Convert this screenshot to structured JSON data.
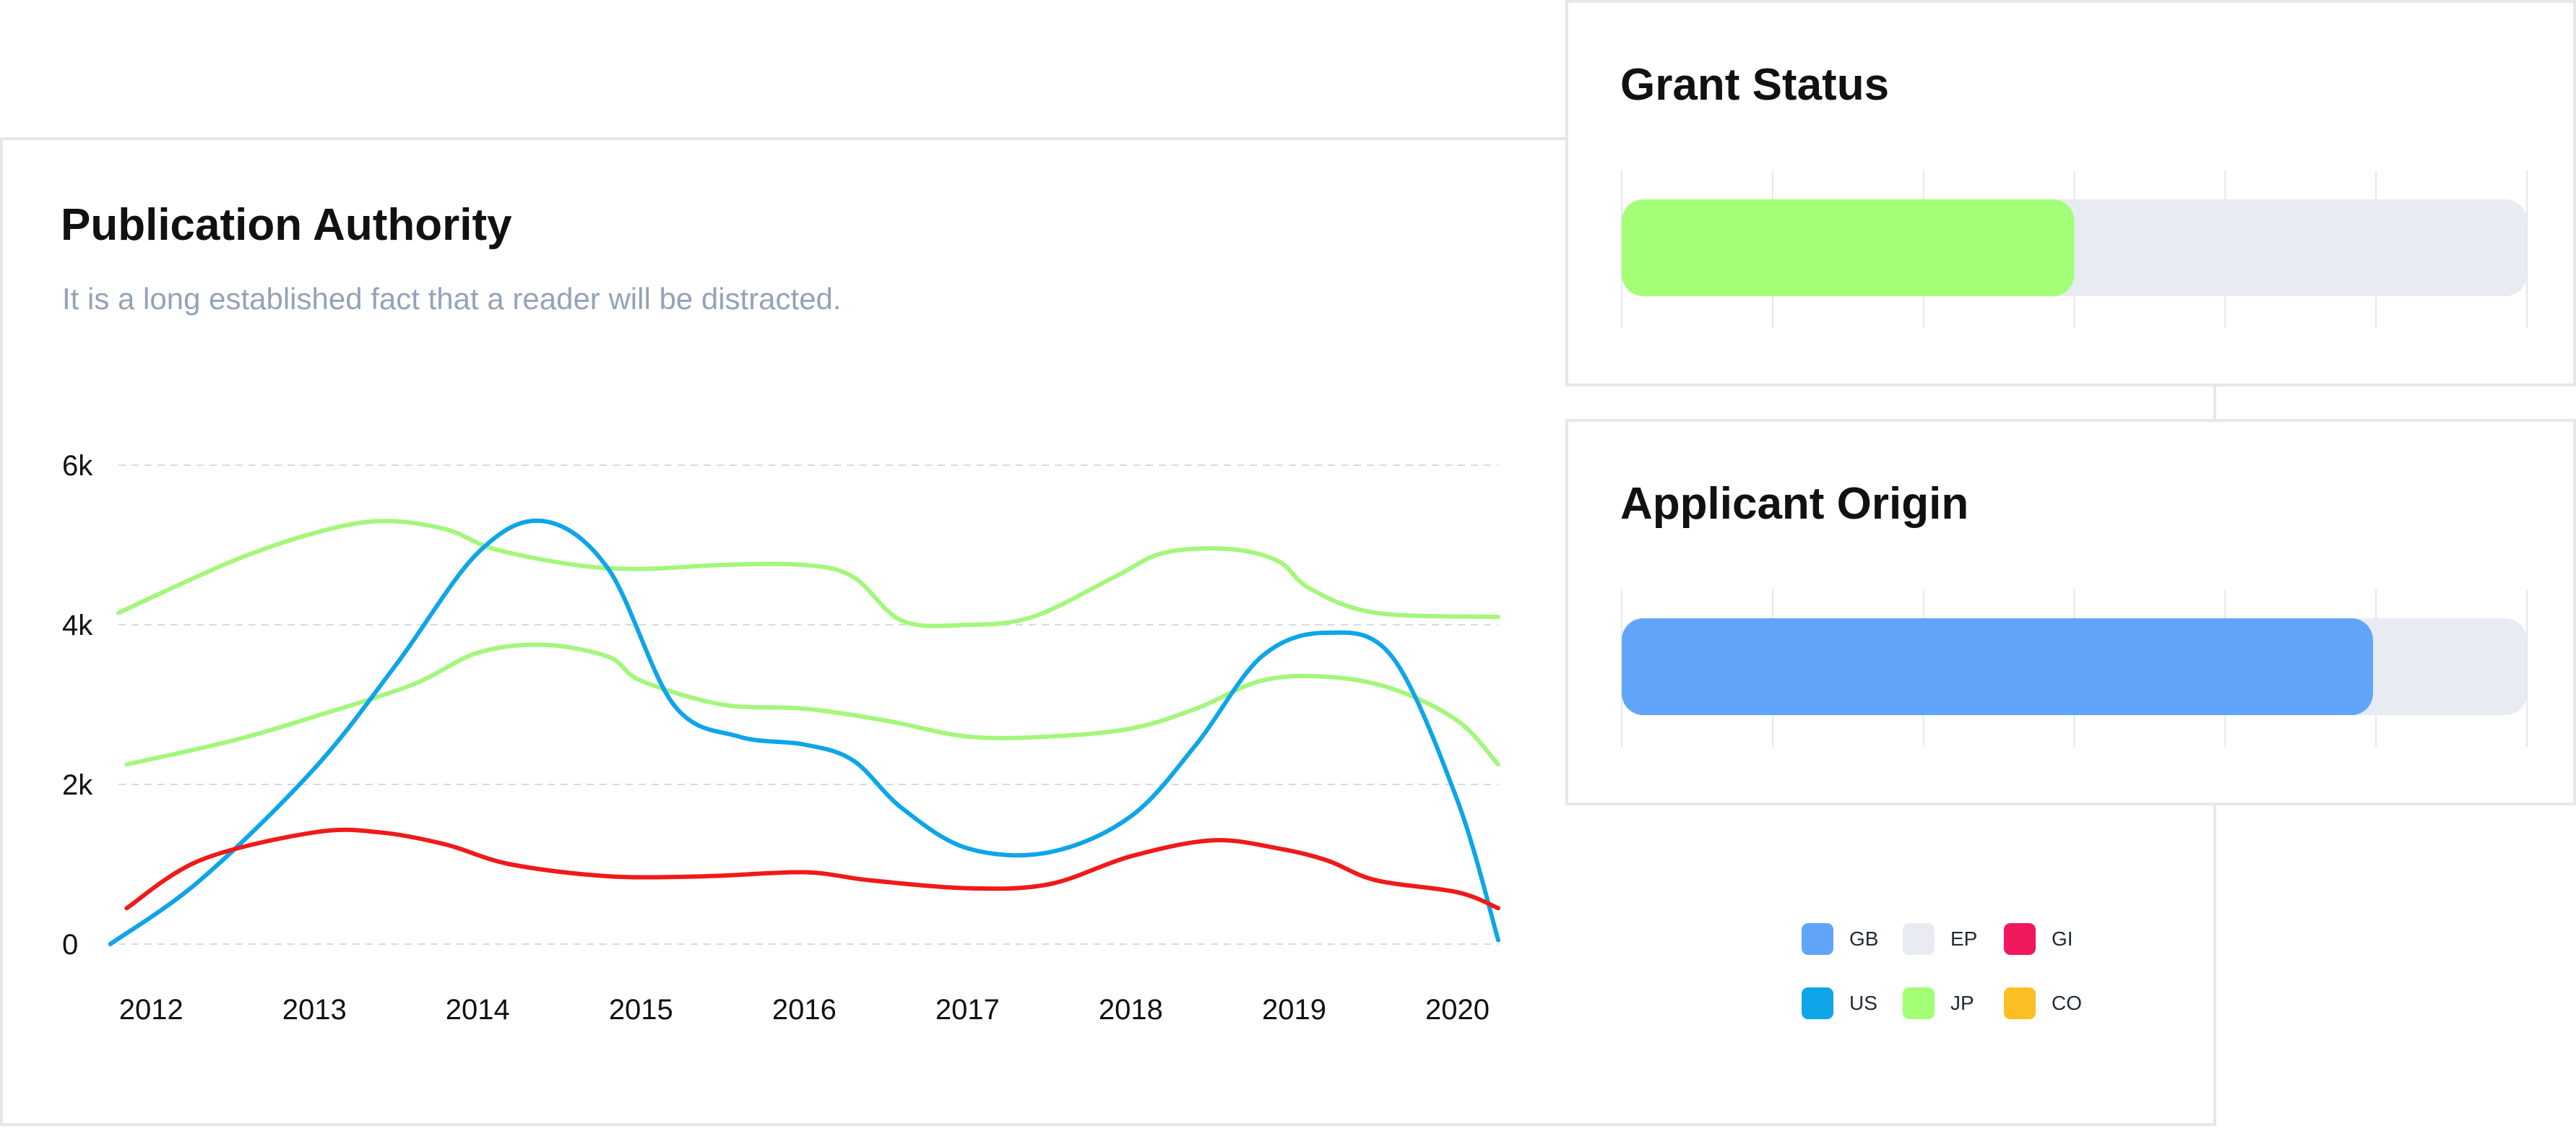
{
  "colors": {
    "GB": "#60a5fa",
    "EP": "#e8ebf1",
    "GI": "#f0185c",
    "US": "#0ea5e9",
    "JP": "#a3ff76",
    "CO": "#fbbf24",
    "red_line": "#ef1a1a",
    "green_line": "#a3f77a",
    "blue_line": "#0ea5e9",
    "grid": "#d6dbe2"
  },
  "main": {
    "title": "Publication Authority",
    "subtitle": "It is a long established fact that a reader will be distracted."
  },
  "grant": {
    "title": "Grant Status"
  },
  "origin": {
    "title": "Applicant Origin"
  },
  "legend": [
    {
      "label": "GB",
      "color": "#60a5fa"
    },
    {
      "label": "EP",
      "color": "#e8ebf1"
    },
    {
      "label": "GI",
      "color": "#f0185c"
    },
    {
      "label": "US",
      "color": "#0ea5e9"
    },
    {
      "label": "JP",
      "color": "#a3ff76"
    },
    {
      "label": "CO",
      "color": "#fbbf24"
    }
  ],
  "chart_data": [
    {
      "type": "line",
      "title": "Publication Authority",
      "subtitle": "It is a long established fact that a reader will be distracted.",
      "x_ticks": [
        "2012",
        "2013",
        "2014",
        "2015",
        "2016",
        "2017",
        "2018",
        "2019",
        "2020"
      ],
      "xlim": [
        2011.8,
        2020.25
      ],
      "y_ticks": [
        "0",
        "2k",
        "4k",
        "6k"
      ],
      "ylim": [
        0,
        6000
      ],
      "grid": true,
      "series": [
        {
          "color": "#a3f77a",
          "x": [
            2011.8,
            2012.5,
            2013.0,
            2013.4,
            2013.8,
            2014.1,
            2014.6,
            2015.0,
            2015.5,
            2016.0,
            2016.3,
            2016.6,
            2017.0,
            2017.4,
            2017.9,
            2018.2,
            2018.6,
            2018.9,
            2019.1,
            2019.5,
            2020.25
          ],
          "y": [
            4150,
            4800,
            5150,
            5300,
            5200,
            4950,
            4750,
            4700,
            4750,
            4750,
            4600,
            4050,
            4000,
            4100,
            4600,
            4900,
            4950,
            4800,
            4450,
            4150,
            4100
          ]
        },
        {
          "color": "#a3f77a",
          "x": [
            2011.85,
            2012.5,
            2013.0,
            2013.6,
            2014.0,
            2014.4,
            2014.8,
            2015.0,
            2015.5,
            2016.0,
            2016.5,
            2017.0,
            2017.5,
            2018.0,
            2018.4,
            2018.8,
            2019.2,
            2019.6,
            2020.0,
            2020.25
          ],
          "y": [
            2250,
            2550,
            2850,
            3250,
            3650,
            3750,
            3600,
            3300,
            3000,
            2950,
            2800,
            2600,
            2600,
            2700,
            2950,
            3300,
            3350,
            3200,
            2800,
            2250
          ]
        },
        {
          "color": "#0ea5e9",
          "x": [
            2011.75,
            2012.3,
            2013.0,
            2013.5,
            2014.0,
            2014.4,
            2014.8,
            2015.2,
            2015.6,
            2016.0,
            2016.3,
            2016.6,
            2017.0,
            2017.5,
            2018.0,
            2018.4,
            2018.8,
            2019.2,
            2019.6,
            2020.0,
            2020.25
          ],
          "y": [
            0,
            800,
            2200,
            3500,
            4900,
            5300,
            4700,
            3000,
            2600,
            2500,
            2300,
            1700,
            1200,
            1150,
            1600,
            2500,
            3600,
            3900,
            3600,
            1800,
            50
          ]
        },
        {
          "color": "#ef1a1a",
          "x": [
            2011.85,
            2012.3,
            2013.0,
            2013.4,
            2013.8,
            2014.2,
            2014.8,
            2015.4,
            2016.0,
            2016.4,
            2017.0,
            2017.5,
            2018.0,
            2018.5,
            2018.9,
            2019.2,
            2019.5,
            2020.0,
            2020.25
          ],
          "y": [
            450,
            1050,
            1400,
            1400,
            1250,
            1000,
            850,
            850,
            900,
            800,
            700,
            750,
            1100,
            1300,
            1200,
            1050,
            800,
            650,
            450
          ]
        }
      ]
    },
    {
      "type": "bar",
      "title": "Grant Status",
      "orientation": "horizontal",
      "value": 0.5,
      "max": 1,
      "fill_color": "#a3ff76",
      "track_color": "#e8ebf1",
      "grid": true
    },
    {
      "type": "bar",
      "title": "Applicant Origin",
      "orientation": "horizontal",
      "value": 0.83,
      "max": 1,
      "fill_color": "#60a5fa",
      "track_color": "#e8ebf1",
      "grid": true
    }
  ]
}
